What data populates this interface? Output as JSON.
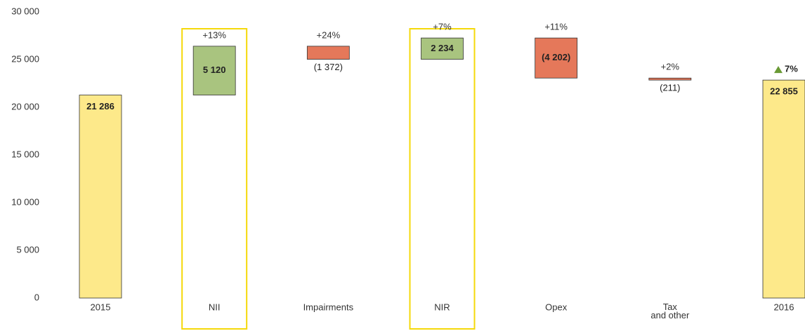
{
  "chart_data": {
    "type": "waterfall",
    "categories": [
      "2015",
      "NII",
      "Impairments",
      "NIR",
      "Opex",
      "Tax\nand other",
      "2016"
    ],
    "values": [
      21286,
      5120,
      -1372,
      2234,
      -4202,
      -211,
      22855
    ],
    "value_labels": [
      "21 286",
      "5 120",
      "(1 372)",
      "2 234",
      "(4 202)",
      "(211)",
      "22 855"
    ],
    "annotations": [
      null,
      "+13%",
      "+24%",
      "+7%",
      "+11%",
      "+2%",
      "7%"
    ],
    "is_total": [
      true,
      false,
      false,
      false,
      false,
      false,
      true
    ],
    "highlighted": [
      1,
      3
    ],
    "colors": {
      "total": "#fde98a",
      "increase": "#a9c47f",
      "decrease": "#e5785a",
      "highlight": "#f5d90a",
      "up_arrow": "#6a9a35"
    },
    "ylim": [
      0,
      30000
    ],
    "yticks": [
      0,
      {
        "value": 5000,
        "label": "5 000"
      },
      {
        "value": 10000,
        "label": "10 000"
      },
      {
        "value": 15000,
        "label": "15 000"
      },
      {
        "value": 20000,
        "label": "20 000"
      },
      {
        "value": 25000,
        "label": "25 000"
      },
      {
        "value": 30000,
        "label": "30 000"
      }
    ]
  }
}
